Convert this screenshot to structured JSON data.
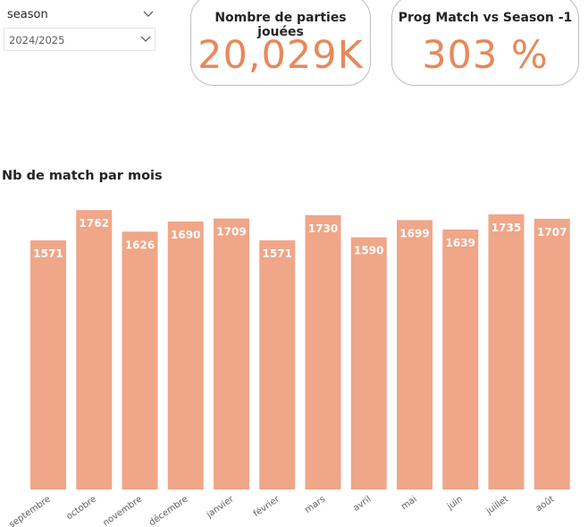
{
  "slicer": {
    "title": "season",
    "selected_value": "2024/2025"
  },
  "cards": [
    {
      "title": "Nombre de parties jouées",
      "value": "20,029K"
    },
    {
      "title": "Prog Match vs Season -1",
      "value": "303 %"
    }
  ],
  "chart_data": {
    "type": "bar",
    "title": "Nb de match par mois",
    "categories": [
      "septembre",
      "octobre",
      "novembre",
      "décembre",
      "janvier",
      "février",
      "mars",
      "avril",
      "mai",
      "juin",
      "juillet",
      "août"
    ],
    "values": [
      1571,
      1762,
      1626,
      1690,
      1709,
      1571,
      1730,
      1590,
      1699,
      1639,
      1735,
      1707
    ],
    "ylim": [
      0,
      1780
    ],
    "grid": false,
    "bar_color": "#f0a688",
    "label_color": "#ffffff"
  },
  "colors": {
    "accent": "#e8885a",
    "bar": "#f0a688"
  }
}
